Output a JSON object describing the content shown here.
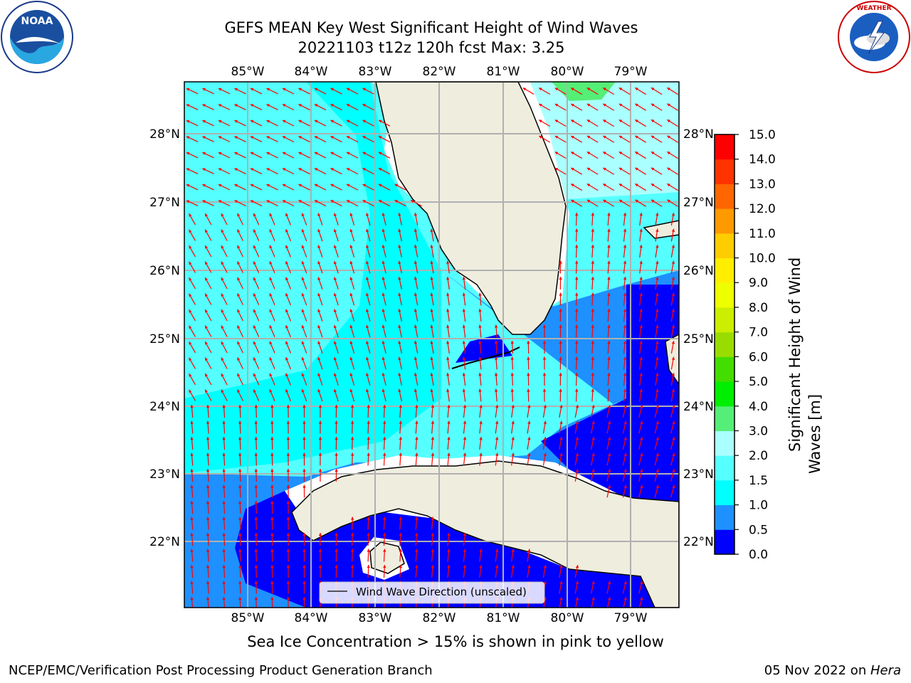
{
  "header": {
    "title_line1": "GEFS MEAN Key West Significant Height of Wind Waves",
    "title_line2": "20221103 t12z 120h fcst   Max: 3.25"
  },
  "logos": {
    "left": "NOAA",
    "left_ring_text": "NATIONAL OCEANIC AND ATMOSPHERIC ADMINISTRATION · U.S. DEPARTMENT OF COMMERCE",
    "right_ring_text": "NATIONAL WEATHER SERVICE"
  },
  "map": {
    "lon_labels": [
      "85°W",
      "84°W",
      "83°W",
      "82°W",
      "81°W",
      "80°W",
      "79°W"
    ],
    "lat_labels": [
      "28°N",
      "27°N",
      "26°N",
      "25°N",
      "24°N",
      "23°N",
      "22°N"
    ],
    "legend_label": "Wind Wave Direction (unscaled)",
    "arrow_color": "#ff0000",
    "land_color": "#efedde"
  },
  "colorbar": {
    "title_line1": "Significant Height of Wind",
    "title_line2": "Waves [m]",
    "ticks": [
      "0.0",
      "0.5",
      "1.0",
      "1.5",
      "2.0",
      "3.0",
      "4.0",
      "5.0",
      "6.0",
      "7.0",
      "8.0",
      "9.0",
      "10.0",
      "11.0",
      "12.0",
      "13.0",
      "14.0",
      "15.0"
    ],
    "colors": [
      "#0000ff",
      "#1e90ff",
      "#00ffff",
      "#55ffff",
      "#aaffff",
      "#55ee77",
      "#00ee00",
      "#44dd00",
      "#99dd00",
      "#ccee00",
      "#eeff00",
      "#ffee00",
      "#ffcc00",
      "#ff9900",
      "#ff6600",
      "#ff3300",
      "#ff0000"
    ]
  },
  "captions": {
    "sea_ice": "Sea Ice Concentration > 15% is shown in pink to yellow",
    "footer_left": "NCEP/EMC/Verification Post Processing Product Generation Branch",
    "footer_date": "05 Nov 2022 on ",
    "footer_machine": "Hera"
  }
}
